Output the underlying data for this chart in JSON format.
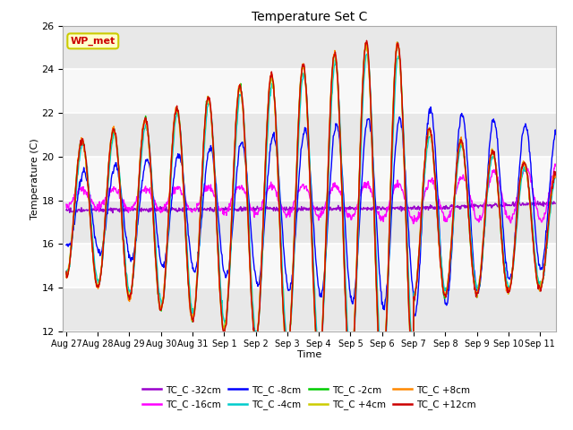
{
  "title": "Temperature Set C",
  "xlabel": "Time",
  "ylabel": "Temperature (C)",
  "ylim": [
    12,
    26
  ],
  "yticks": [
    12,
    14,
    16,
    18,
    20,
    22,
    24,
    26
  ],
  "series_labels": [
    "TC_C -32cm",
    "TC_C -16cm",
    "TC_C -8cm",
    "TC_C -4cm",
    "TC_C -2cm",
    "TC_C +4cm",
    "TC_C +8cm",
    "TC_C +12cm"
  ],
  "series_colors": [
    "#9900cc",
    "#ff00ff",
    "#0000ff",
    "#00cccc",
    "#00cc00",
    "#cccc00",
    "#ff8800",
    "#cc0000"
  ],
  "wp_met_box_color": "#ffffcc",
  "wp_met_text_color": "#cc0000",
  "wp_met_border_color": "#cccc00",
  "background_color": "#ffffff",
  "plot_bg_stripes": true,
  "n_points": 1000,
  "x_tick_labels": [
    "Aug 27",
    "Aug 28",
    "Aug 29",
    "Aug 30",
    "Aug 31",
    "Sep 1",
    "Sep 2",
    "Sep 3",
    "Sep 4",
    "Sep 5",
    "Sep 6",
    "Sep 7",
    "Sep 8",
    "Sep 9",
    "Sep 10",
    "Sep 11"
  ],
  "x_tick_positions": [
    0,
    1,
    2,
    3,
    4,
    5,
    6,
    7,
    8,
    9,
    10,
    11,
    12,
    13,
    14,
    15
  ]
}
